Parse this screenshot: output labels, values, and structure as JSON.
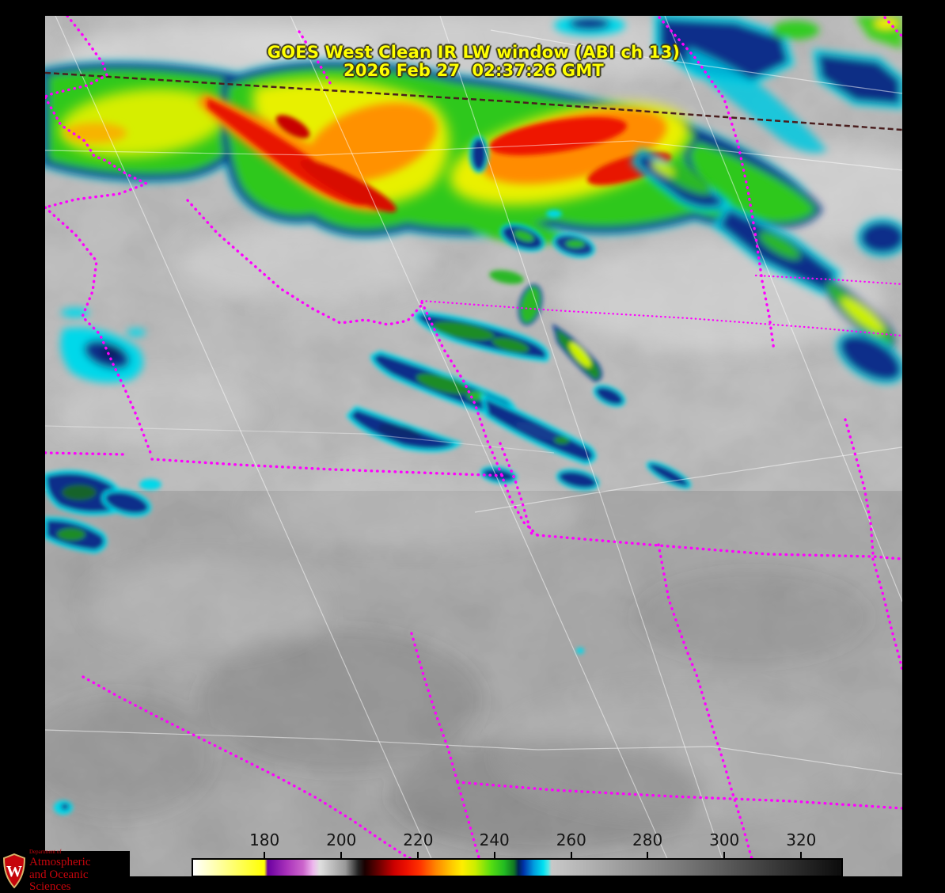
{
  "title": {
    "line1": "GOES West Clean IR LW window (ABI ch 13)",
    "line2": "2026 Feb 27  02:37:26 GMT",
    "color": "#ffff00"
  },
  "colorbar": {
    "tick_labels": [
      "180",
      "200",
      "220",
      "240",
      "260",
      "280",
      "300",
      "320"
    ],
    "tick_values": [
      180,
      200,
      220,
      240,
      260,
      280,
      300,
      320
    ],
    "tick_positions_pct": [
      11.2,
      23.0,
      34.8,
      46.5,
      58.3,
      70.0,
      81.8,
      93.6
    ],
    "gradient": [
      [
        "0%",
        "#ffffff"
      ],
      [
        "11%",
        "#ffff00"
      ],
      [
        "11.5%",
        "#6a00a0"
      ],
      [
        "14.5%",
        "#aa33bb"
      ],
      [
        "17%",
        "#cc66cc"
      ],
      [
        "18.5%",
        "#eeb8ee"
      ],
      [
        "19.5%",
        "#e0e0e0"
      ],
      [
        "23.5%",
        "#999999"
      ],
      [
        "25.5%",
        "#222222"
      ],
      [
        "26.5%",
        "#1a0000"
      ],
      [
        "28.5%",
        "#660000"
      ],
      [
        "31%",
        "#cc0000"
      ],
      [
        "33%",
        "#ee1100"
      ],
      [
        "35%",
        "#ff3300"
      ],
      [
        "37.5%",
        "#ff8800"
      ],
      [
        "40%",
        "#ffcc00"
      ],
      [
        "41.5%",
        "#ffee00"
      ],
      [
        "43.5%",
        "#ccee00"
      ],
      [
        "46%",
        "#55dd11"
      ],
      [
        "48%",
        "#22bb22"
      ],
      [
        "49.5%",
        "#117722"
      ],
      [
        "50.2%",
        "#002255"
      ],
      [
        "51%",
        "#0033aa"
      ],
      [
        "52.5%",
        "#0099dd"
      ],
      [
        "54%",
        "#00e0f0"
      ],
      [
        "54.8%",
        "#55e8e8"
      ],
      [
        "55.3%",
        "#c8c8c8"
      ],
      [
        "75%",
        "#7a7a7a"
      ],
      [
        "100%",
        "#0c0c0c"
      ]
    ]
  },
  "logo": {
    "department": "Department of",
    "line1": "Atmospheric",
    "line2": "and Oceanic Sciences",
    "monogram": "W",
    "color": "#c5050c"
  },
  "map_overlay": {
    "boundary_color": "#ff00ff",
    "grid_color": "#ffffff",
    "latitude_marker_color": "#4a1f1f"
  }
}
